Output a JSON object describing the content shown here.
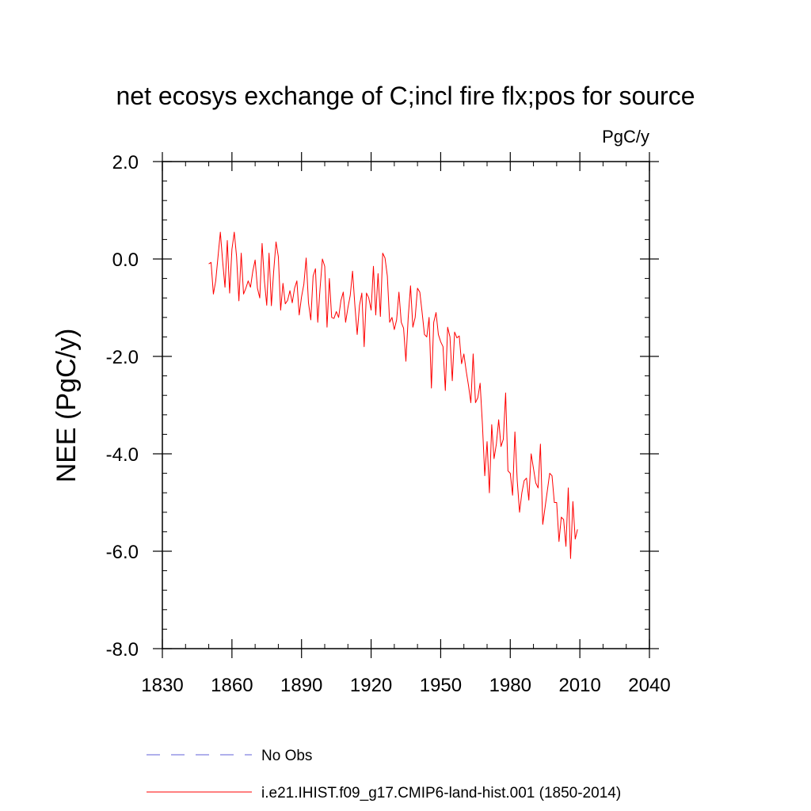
{
  "chart_data": {
    "type": "line",
    "title": "net ecosys exchange of C;incl fire flx;pos for source",
    "units_label": "PgC/y",
    "ylabel": "NEE  (PgC/y)",
    "xlabel": "",
    "xlim": [
      1830,
      2040
    ],
    "ylim": [
      -8.0,
      2.0
    ],
    "x_ticks": [
      1830,
      1860,
      1890,
      1920,
      1950,
      1980,
      2010,
      2040
    ],
    "y_ticks": [
      2.0,
      0.0,
      -2.0,
      -4.0,
      -6.0,
      -8.0
    ],
    "y_tick_labels": [
      "2.0",
      "0.0",
      "-2.0",
      "-4.0",
      "-6.0",
      "-8.0"
    ],
    "grid": false,
    "legend_position": "bottom",
    "legend": [
      {
        "label": "No Obs",
        "style": "dashed",
        "color": "#8080e0"
      },
      {
        "label": "i.e21.IHIST.f09_g17.CMIP6-land-hist.001 (1850-2014)",
        "style": "solid",
        "color": "#ff0000"
      }
    ],
    "series": [
      {
        "name": "i.e21.IHIST.f09_g17.CMIP6-land-hist.001 (1850-2014)",
        "color": "#ff0000",
        "x_start": 1850,
        "x_step": 1,
        "values": [
          -0.1,
          -0.07,
          -0.72,
          -0.45,
          0.05,
          0.55,
          -0.05,
          -0.58,
          0.38,
          -0.7,
          0.2,
          0.55,
          0.05,
          -0.86,
          0.12,
          -0.72,
          -0.6,
          -0.45,
          -0.58,
          -0.25,
          -0.02,
          -0.6,
          -0.8,
          0.32,
          -0.45,
          -0.95,
          0.12,
          -0.96,
          -0.25,
          0.35,
          0.05,
          -1.05,
          -0.5,
          -0.92,
          -0.85,
          -0.65,
          -0.9,
          -0.6,
          -0.45,
          -1.15,
          -0.78,
          -0.52,
          0.02,
          -0.9,
          -1.25,
          -0.35,
          -0.2,
          -1.3,
          -0.6,
          0.0,
          -0.15,
          -1.4,
          -0.4,
          -1.2,
          -1.22,
          -1.08,
          -1.2,
          -0.85,
          -0.68,
          -1.3,
          -1.0,
          -0.75,
          -0.25,
          -0.95,
          -1.55,
          -0.95,
          -0.7,
          -1.8,
          -0.7,
          -0.8,
          -1.05,
          -0.15,
          -1.15,
          -0.3,
          -1.18,
          0.12,
          0.02,
          -0.35,
          -1.3,
          -1.2,
          -1.45,
          -1.25,
          -0.68,
          -1.3,
          -1.42,
          -2.1,
          -1.2,
          -0.55,
          -1.4,
          -1.2,
          -0.6,
          -0.68,
          -1.1,
          -1.55,
          -1.6,
          -1.2,
          -2.65,
          -1.3,
          -1.1,
          -1.55,
          -1.7,
          -1.8,
          -2.7,
          -1.4,
          -1.6,
          -2.5,
          -1.5,
          -1.62,
          -1.58,
          -2.15,
          -1.95,
          -2.3,
          -2.6,
          -2.95,
          -1.95,
          -2.95,
          -2.85,
          -2.55,
          -3.4,
          -4.45,
          -3.75,
          -4.8,
          -3.4,
          -4.1,
          -3.8,
          -3.3,
          -3.85,
          -3.7,
          -2.75,
          -4.35,
          -4.4,
          -4.85,
          -3.55,
          -4.55,
          -5.2,
          -4.8,
          -4.55,
          -4.5,
          -4.95,
          -4.0,
          -4.3,
          -4.6,
          -4.7,
          -3.8,
          -5.45,
          -5.1,
          -4.75,
          -4.4,
          -4.45,
          -5.0,
          -5.0,
          -5.8,
          -5.3,
          -5.35,
          -5.9,
          -4.7,
          -6.15,
          -4.98,
          -5.75,
          -5.55
        ]
      }
    ]
  }
}
